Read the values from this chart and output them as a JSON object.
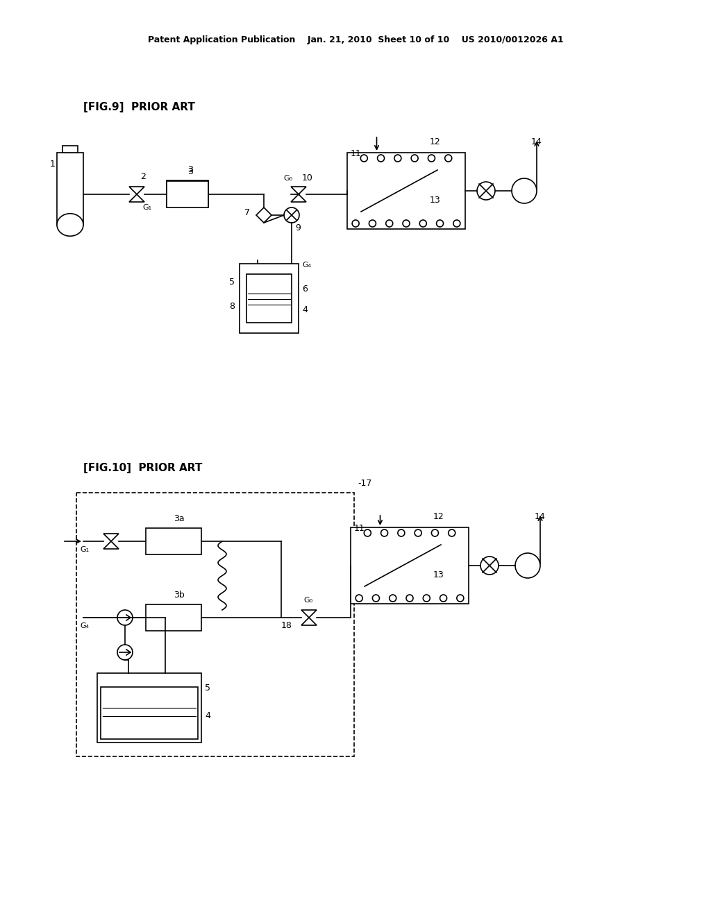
{
  "bg_color": "#ffffff",
  "header_text": "Patent Application Publication    Jan. 21, 2010  Sheet 10 of 10    US 2010/0012026 A1",
  "fig9_label": "[FIG.9]  PRIOR ART",
  "fig10_label": "[FIG.10]  PRIOR ART",
  "line_color": "#000000",
  "text_color": "#000000"
}
